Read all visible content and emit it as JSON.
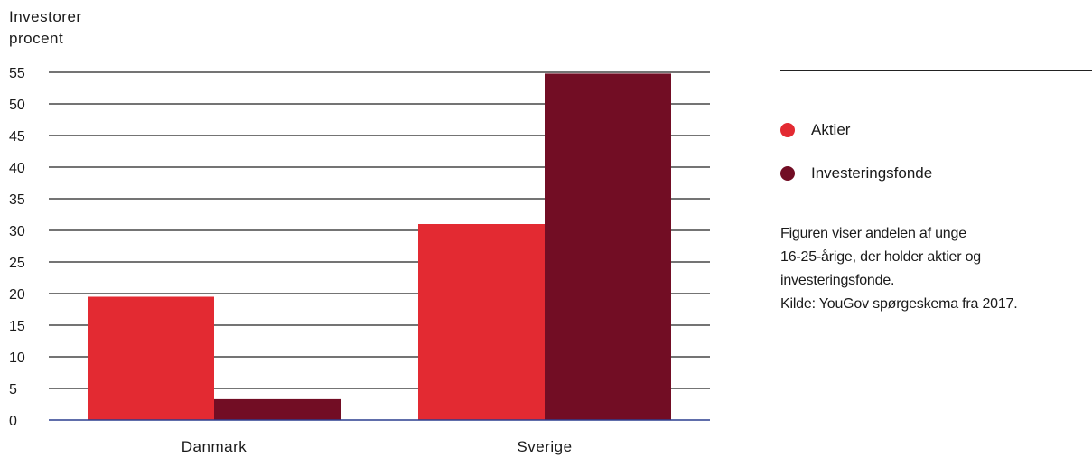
{
  "chart_data": {
    "type": "bar",
    "ylabel_lines": [
      "Investorer",
      "procent"
    ],
    "categories": [
      "Danmark",
      "Sverige"
    ],
    "series": [
      {
        "name": "Aktier",
        "color": "#e32a32",
        "values": [
          19.5,
          31
        ]
      },
      {
        "name": "Investeringsfonde",
        "color": "#720d24",
        "values": [
          3.3,
          54.8
        ]
      }
    ],
    "ylim": [
      0,
      55
    ],
    "yticks": [
      0,
      5,
      10,
      15,
      20,
      25,
      30,
      35,
      40,
      45,
      50,
      55
    ],
    "grid": true,
    "legend_placement": "right"
  },
  "note_lines": [
    "Figuren viser andelen af unge",
    "16-25-årige, der holder aktier og",
    "investeringsfonde.",
    "Kilde: YouGov spørgeskema fra 2017."
  ],
  "colors": {
    "axis": "#2c3e8f",
    "grid": "#222222"
  }
}
